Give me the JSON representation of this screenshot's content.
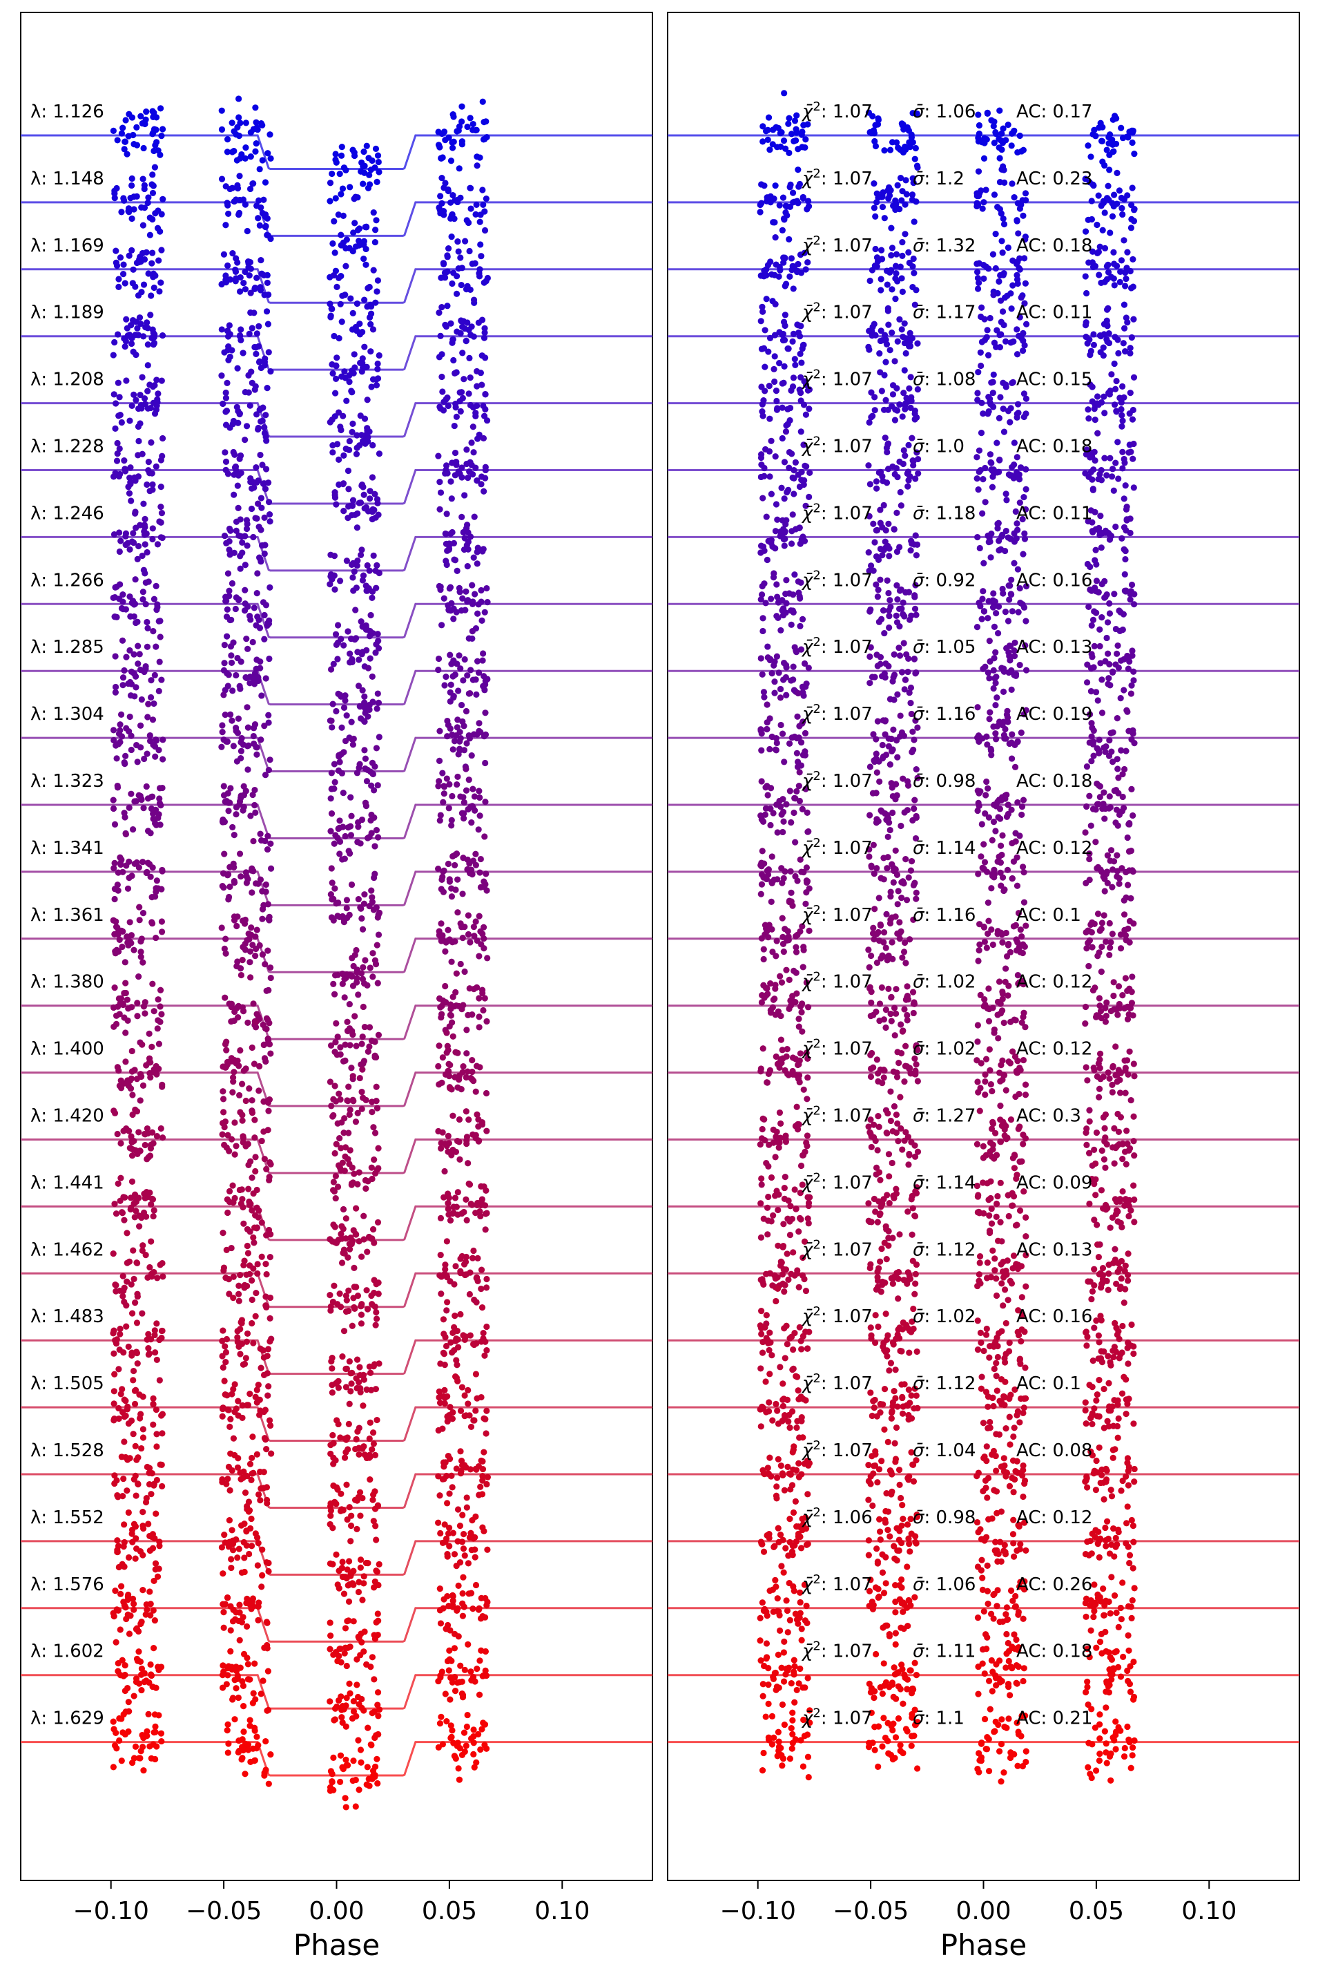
{
  "chart_data": [
    {
      "type": "scatter",
      "panel": "left",
      "xlabel": "Phase",
      "xlim": [
        -0.14,
        0.14
      ],
      "xticks": [
        "-0.10",
        "-0.05",
        "0.00",
        "0.05",
        "0.10"
      ],
      "xtick_values": [
        -0.1,
        -0.05,
        0.0,
        0.05,
        0.1
      ],
      "description_of_marks": "Light curves (points) with transit model lines for each wavelength channel, vertically offset.",
      "cluster_centers": [
        -0.088,
        -0.04,
        0.008,
        0.056
      ],
      "transit_model": {
        "t1": -0.035,
        "t2": -0.03,
        "t3": 0.03,
        "t4": 0.035,
        "depth_rows": 0.5
      },
      "rows": [
        {
          "label": "λ: 1.126",
          "wl": 1.126,
          "color": "#0a02e3"
        },
        {
          "label": "λ: 1.148",
          "wl": 1.148,
          "color": "#1702db"
        },
        {
          "label": "λ: 1.169",
          "wl": 1.169,
          "color": "#2302d3"
        },
        {
          "label": "λ: 1.189",
          "wl": 1.189,
          "color": "#2f02cb"
        },
        {
          "label": "λ: 1.208",
          "wl": 1.208,
          "color": "#3a02c2"
        },
        {
          "label": "λ: 1.228",
          "wl": 1.228,
          "color": "#4402b9"
        },
        {
          "label": "λ: 1.246",
          "wl": 1.246,
          "color": "#4d02b0"
        },
        {
          "label": "λ: 1.266",
          "wl": 1.266,
          "color": "#5702a6"
        },
        {
          "label": "λ: 1.285",
          "wl": 1.285,
          "color": "#60029c"
        },
        {
          "label": "λ: 1.304",
          "wl": 1.304,
          "color": "#690292"
        },
        {
          "label": "λ: 1.323",
          "wl": 1.323,
          "color": "#720288"
        },
        {
          "label": "λ: 1.341",
          "wl": 1.341,
          "color": "#7b027e"
        },
        {
          "label": "λ: 1.361",
          "wl": 1.361,
          "color": "#850274"
        },
        {
          "label": "λ: 1.380",
          "wl": 1.38,
          "color": "#8e026a"
        },
        {
          "label": "λ: 1.400",
          "wl": 1.4,
          "color": "#970260"
        },
        {
          "label": "λ: 1.420",
          "wl": 1.42,
          "color": "#a00256"
        },
        {
          "label": "λ: 1.441",
          "wl": 1.441,
          "color": "#aa024c"
        },
        {
          "label": "λ: 1.462",
          "wl": 1.462,
          "color": "#b30242"
        },
        {
          "label": "λ: 1.483",
          "wl": 1.483,
          "color": "#bc0238"
        },
        {
          "label": "λ: 1.505",
          "wl": 1.505,
          "color": "#c6022e"
        },
        {
          "label": "λ: 1.528",
          "wl": 1.528,
          "color": "#cf0224"
        },
        {
          "label": "λ: 1.552",
          "wl": 1.552,
          "color": "#d9021a"
        },
        {
          "label": "λ: 1.576",
          "wl": 1.576,
          "color": "#e30212"
        },
        {
          "label": "λ: 1.602",
          "wl": 1.602,
          "color": "#ec020a"
        },
        {
          "label": "λ: 1.629",
          "wl": 1.629,
          "color": "#f50204"
        }
      ]
    },
    {
      "type": "scatter",
      "panel": "right",
      "xlabel": "Phase",
      "xlim": [
        -0.14,
        0.14
      ],
      "xticks": [
        "-0.10",
        "-0.05",
        "0.00",
        "0.05",
        "0.10"
      ],
      "xtick_values": [
        -0.1,
        -0.05,
        0.0,
        0.05,
        0.1
      ],
      "description_of_marks": "Residuals (points) around flat lines for each wavelength channel with fit statistics.",
      "cluster_centers": [
        -0.088,
        -0.04,
        0.008,
        0.056
      ],
      "rows": [
        {
          "chi2": "1.07",
          "sigma": "1.06",
          "ac": "0.17"
        },
        {
          "chi2": "1.07",
          "sigma": "1.2",
          "ac": "0.23"
        },
        {
          "chi2": "1.07",
          "sigma": "1.32",
          "ac": "0.18"
        },
        {
          "chi2": "1.07",
          "sigma": "1.17",
          "ac": "0.11"
        },
        {
          "chi2": "1.07",
          "sigma": "1.08",
          "ac": "0.15"
        },
        {
          "chi2": "1.07",
          "sigma": "1.0",
          "ac": "0.18"
        },
        {
          "chi2": "1.07",
          "sigma": "1.18",
          "ac": "0.11"
        },
        {
          "chi2": "1.07",
          "sigma": "0.92",
          "ac": "0.16"
        },
        {
          "chi2": "1.07",
          "sigma": "1.05",
          "ac": "0.13"
        },
        {
          "chi2": "1.07",
          "sigma": "1.16",
          "ac": "0.19"
        },
        {
          "chi2": "1.07",
          "sigma": "0.98",
          "ac": "0.18"
        },
        {
          "chi2": "1.07",
          "sigma": "1.14",
          "ac": "0.12"
        },
        {
          "chi2": "1.07",
          "sigma": "1.16",
          "ac": "0.1"
        },
        {
          "chi2": "1.07",
          "sigma": "1.02",
          "ac": "0.12"
        },
        {
          "chi2": "1.07",
          "sigma": "1.02",
          "ac": "0.12"
        },
        {
          "chi2": "1.07",
          "sigma": "1.27",
          "ac": "0.3"
        },
        {
          "chi2": "1.07",
          "sigma": "1.14",
          "ac": "0.09"
        },
        {
          "chi2": "1.07",
          "sigma": "1.12",
          "ac": "0.13"
        },
        {
          "chi2": "1.07",
          "sigma": "1.02",
          "ac": "0.16"
        },
        {
          "chi2": "1.07",
          "sigma": "1.12",
          "ac": "0.1"
        },
        {
          "chi2": "1.07",
          "sigma": "1.04",
          "ac": "0.08"
        },
        {
          "chi2": "1.06",
          "sigma": "0.98",
          "ac": "0.12"
        },
        {
          "chi2": "1.07",
          "sigma": "1.06",
          "ac": "0.26"
        },
        {
          "chi2": "1.07",
          "sigma": "1.11",
          "ac": "0.18"
        },
        {
          "chi2": "1.07",
          "sigma": "1.1",
          "ac": "0.21"
        }
      ]
    }
  ]
}
